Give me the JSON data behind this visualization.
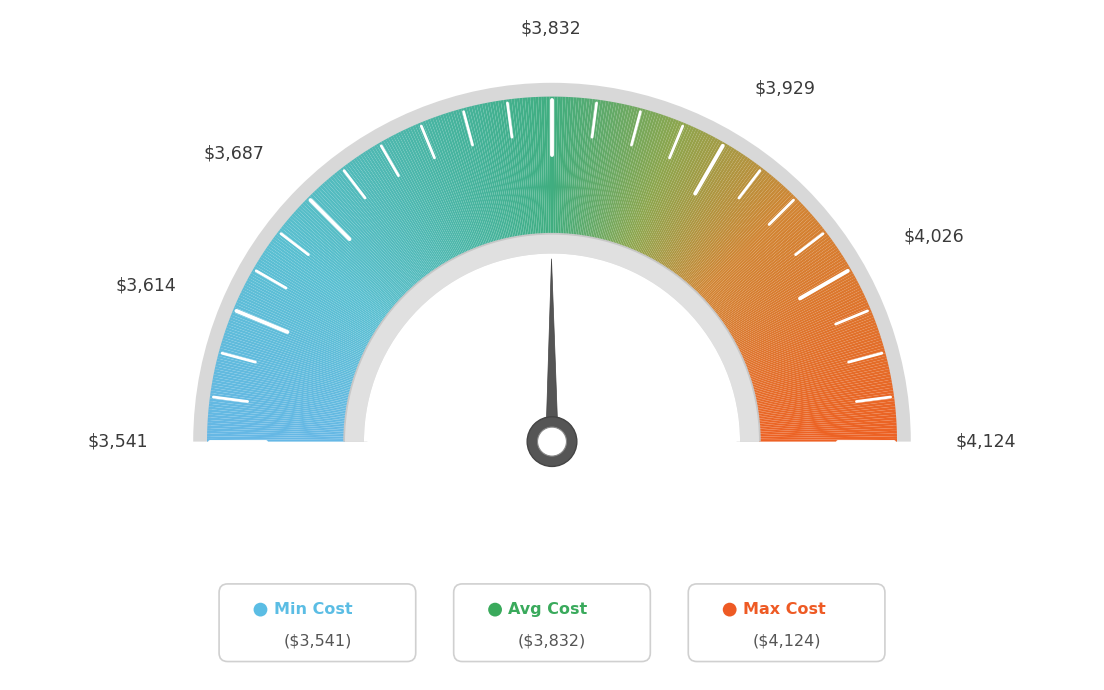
{
  "min_val": 3541,
  "max_val": 4124,
  "avg_val": 3832,
  "labels": {
    "min": "$3,541",
    "max": "$4,124",
    "avg": "$3,832",
    "v1": "$3,614",
    "v2": "$3,687",
    "v3": "$3,929",
    "v4": "$4,026"
  },
  "legend": [
    {
      "label": "Min Cost",
      "sublabel": "($3,541)",
      "color": "#5bbde4"
    },
    {
      "label": "Avg Cost",
      "sublabel": "($3,832)",
      "color": "#3aaa5c"
    },
    {
      "label": "Max Cost",
      "sublabel": "($4,124)",
      "color": "#ee5a24"
    }
  ],
  "background_color": "#ffffff",
  "color_stops": [
    [
      0.0,
      [
        0.4,
        0.72,
        0.9
      ]
    ],
    [
      0.2,
      [
        0.35,
        0.75,
        0.82
      ]
    ],
    [
      0.42,
      [
        0.27,
        0.7,
        0.6
      ]
    ],
    [
      0.5,
      [
        0.25,
        0.68,
        0.5
      ]
    ],
    [
      0.62,
      [
        0.55,
        0.65,
        0.3
      ]
    ],
    [
      0.75,
      [
        0.82,
        0.52,
        0.2
      ]
    ],
    [
      1.0,
      [
        0.93,
        0.38,
        0.14
      ]
    ]
  ]
}
